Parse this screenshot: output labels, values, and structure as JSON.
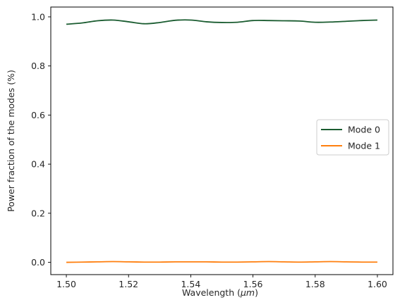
{
  "chart_data": {
    "type": "line",
    "xlabel": "Wavelength (",
    "xlabel_unit": "μm",
    "xlabel_suffix": ")",
    "ylabel": "Power fraction of the modes (%)",
    "xlim": [
      1.495,
      1.605
    ],
    "ylim": [
      -0.05,
      1.04
    ],
    "xticks": [
      1.5,
      1.52,
      1.54,
      1.56,
      1.58,
      1.6
    ],
    "xtick_labels": [
      "1.50",
      "1.52",
      "1.54",
      "1.56",
      "1.58",
      "1.60"
    ],
    "yticks": [
      0.0,
      0.2,
      0.4,
      0.6,
      0.8,
      1.0
    ],
    "ytick_labels": [
      "0.0",
      "0.2",
      "0.4",
      "0.6",
      "0.8",
      "1.0"
    ],
    "grid": false,
    "legend_position": "center-right",
    "x": [
      1.5,
      1.505,
      1.51,
      1.515,
      1.52,
      1.525,
      1.53,
      1.535,
      1.54,
      1.545,
      1.55,
      1.555,
      1.56,
      1.565,
      1.57,
      1.575,
      1.58,
      1.585,
      1.59,
      1.595,
      1.6
    ],
    "series": [
      {
        "name": "Mode 0",
        "color": "#1a5c30",
        "values": [
          0.97,
          0.975,
          0.984,
          0.987,
          0.98,
          0.972,
          0.977,
          0.986,
          0.987,
          0.98,
          0.977,
          0.978,
          0.985,
          0.985,
          0.984,
          0.983,
          0.978,
          0.979,
          0.982,
          0.985,
          0.987
        ]
      },
      {
        "name": "Mode 1",
        "color": "#ff7f0e",
        "values": [
          0.0,
          0.001,
          0.002,
          0.003,
          0.002,
          0.001,
          0.001,
          0.002,
          0.002,
          0.002,
          0.001,
          0.001,
          0.002,
          0.003,
          0.002,
          0.001,
          0.002,
          0.003,
          0.002,
          0.001,
          0.001
        ]
      }
    ]
  }
}
